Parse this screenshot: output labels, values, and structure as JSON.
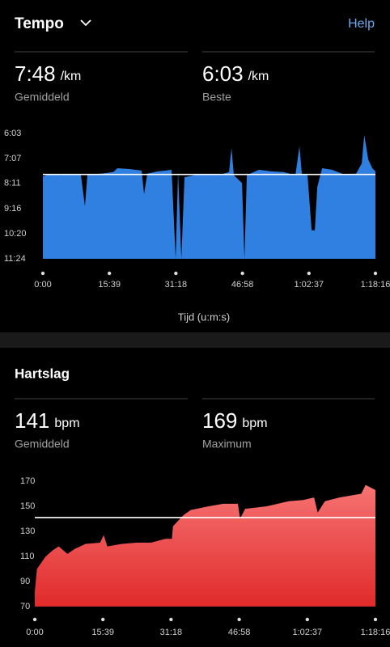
{
  "header": {
    "title": "Tempo",
    "help": "Help"
  },
  "tempo": {
    "stats": [
      {
        "value": "7:48",
        "unit": "/km",
        "label": "Gemiddeld"
      },
      {
        "value": "6:03",
        "unit": "/km",
        "label": "Beste"
      }
    ]
  },
  "hartslag": {
    "title": "Hartslag",
    "stats": [
      {
        "value": "141",
        "unit": "bpm",
        "label": "Gemiddeld"
      },
      {
        "value": "169",
        "unit": "bpm",
        "label": "Maximum"
      }
    ]
  },
  "chart_data": [
    {
      "type": "area",
      "x_label": "Tijd (u:m:s)",
      "color": "#2f80e0",
      "y_inverted": true,
      "average_line": 468,
      "xlim": [
        0,
        4696
      ],
      "xticks": [
        {
          "value": 0,
          "label": "0:00"
        },
        {
          "value": 939,
          "label": "15:39"
        },
        {
          "value": 1878,
          "label": "31:18"
        },
        {
          "value": 2818,
          "label": "46:58"
        },
        {
          "value": 3757,
          "label": "1:02:37"
        },
        {
          "value": 4696,
          "label": "1:18:16"
        }
      ],
      "ylim": [
        363,
        684
      ],
      "yticks": [
        {
          "value": 363,
          "label": "6:03"
        },
        {
          "value": 427,
          "label": "7:07"
        },
        {
          "value": 491,
          "label": "8:11"
        },
        {
          "value": 556,
          "label": "9:16"
        },
        {
          "value": 620,
          "label": "10:20"
        },
        {
          "value": 684,
          "label": "11:24"
        }
      ],
      "x": [
        0,
        80,
        251,
        423,
        537,
        594,
        629,
        823,
        994,
        1052,
        1223,
        1394,
        1429,
        1474,
        1623,
        1737,
        1817,
        1875,
        1909,
        1955,
        2000,
        2137,
        2309,
        2480,
        2629,
        2663,
        2697,
        2812,
        2846,
        2880,
        3052,
        3223,
        3395,
        3566,
        3623,
        3658,
        3737,
        3795,
        3840,
        3875,
        3943,
        4081,
        4252,
        4423,
        4503,
        4538,
        4595,
        4652,
        4696
      ],
      "values": [
        473,
        468,
        470,
        468,
        470,
        549,
        468,
        466,
        462,
        452,
        454,
        458,
        518,
        466,
        460,
        458,
        456,
        684,
        460,
        684,
        475,
        470,
        468,
        470,
        462,
        400,
        470,
        490,
        684,
        470,
        456,
        460,
        462,
        470,
        396,
        468,
        470,
        611,
        611,
        500,
        452,
        456,
        468,
        466,
        440,
        367,
        430,
        452,
        460
      ]
    },
    {
      "type": "area",
      "color": "#e83a3a",
      "average_line": 141,
      "xlim": [
        0,
        4696
      ],
      "xticks": [
        {
          "value": 0,
          "label": "0:00"
        },
        {
          "value": 939,
          "label": "15:39"
        },
        {
          "value": 1878,
          "label": "31:18"
        },
        {
          "value": 2818,
          "label": "46:58"
        },
        {
          "value": 3757,
          "label": "1:02:37"
        },
        {
          "value": 4696,
          "label": "1:18:16"
        }
      ],
      "ylim": [
        70,
        170
      ],
      "yticks": [
        70,
        90,
        110,
        130,
        150,
        170
      ],
      "x": [
        0,
        30,
        150,
        250,
        330,
        450,
        550,
        700,
        900,
        950,
        1000,
        1200,
        1400,
        1600,
        1800,
        1890,
        1905,
        2050,
        2150,
        2400,
        2600,
        2800,
        2830,
        2900,
        3200,
        3500,
        3700,
        3850,
        3900,
        4000,
        4200,
        4500,
        4560,
        4696
      ],
      "values": [
        82,
        100,
        110,
        115,
        118,
        112,
        116,
        120,
        121,
        127,
        118,
        120,
        121,
        121,
        124,
        124,
        134,
        143,
        147,
        150,
        152,
        152,
        140,
        148,
        150,
        154,
        155,
        157,
        145,
        154,
        157,
        160,
        167,
        163
      ]
    }
  ]
}
